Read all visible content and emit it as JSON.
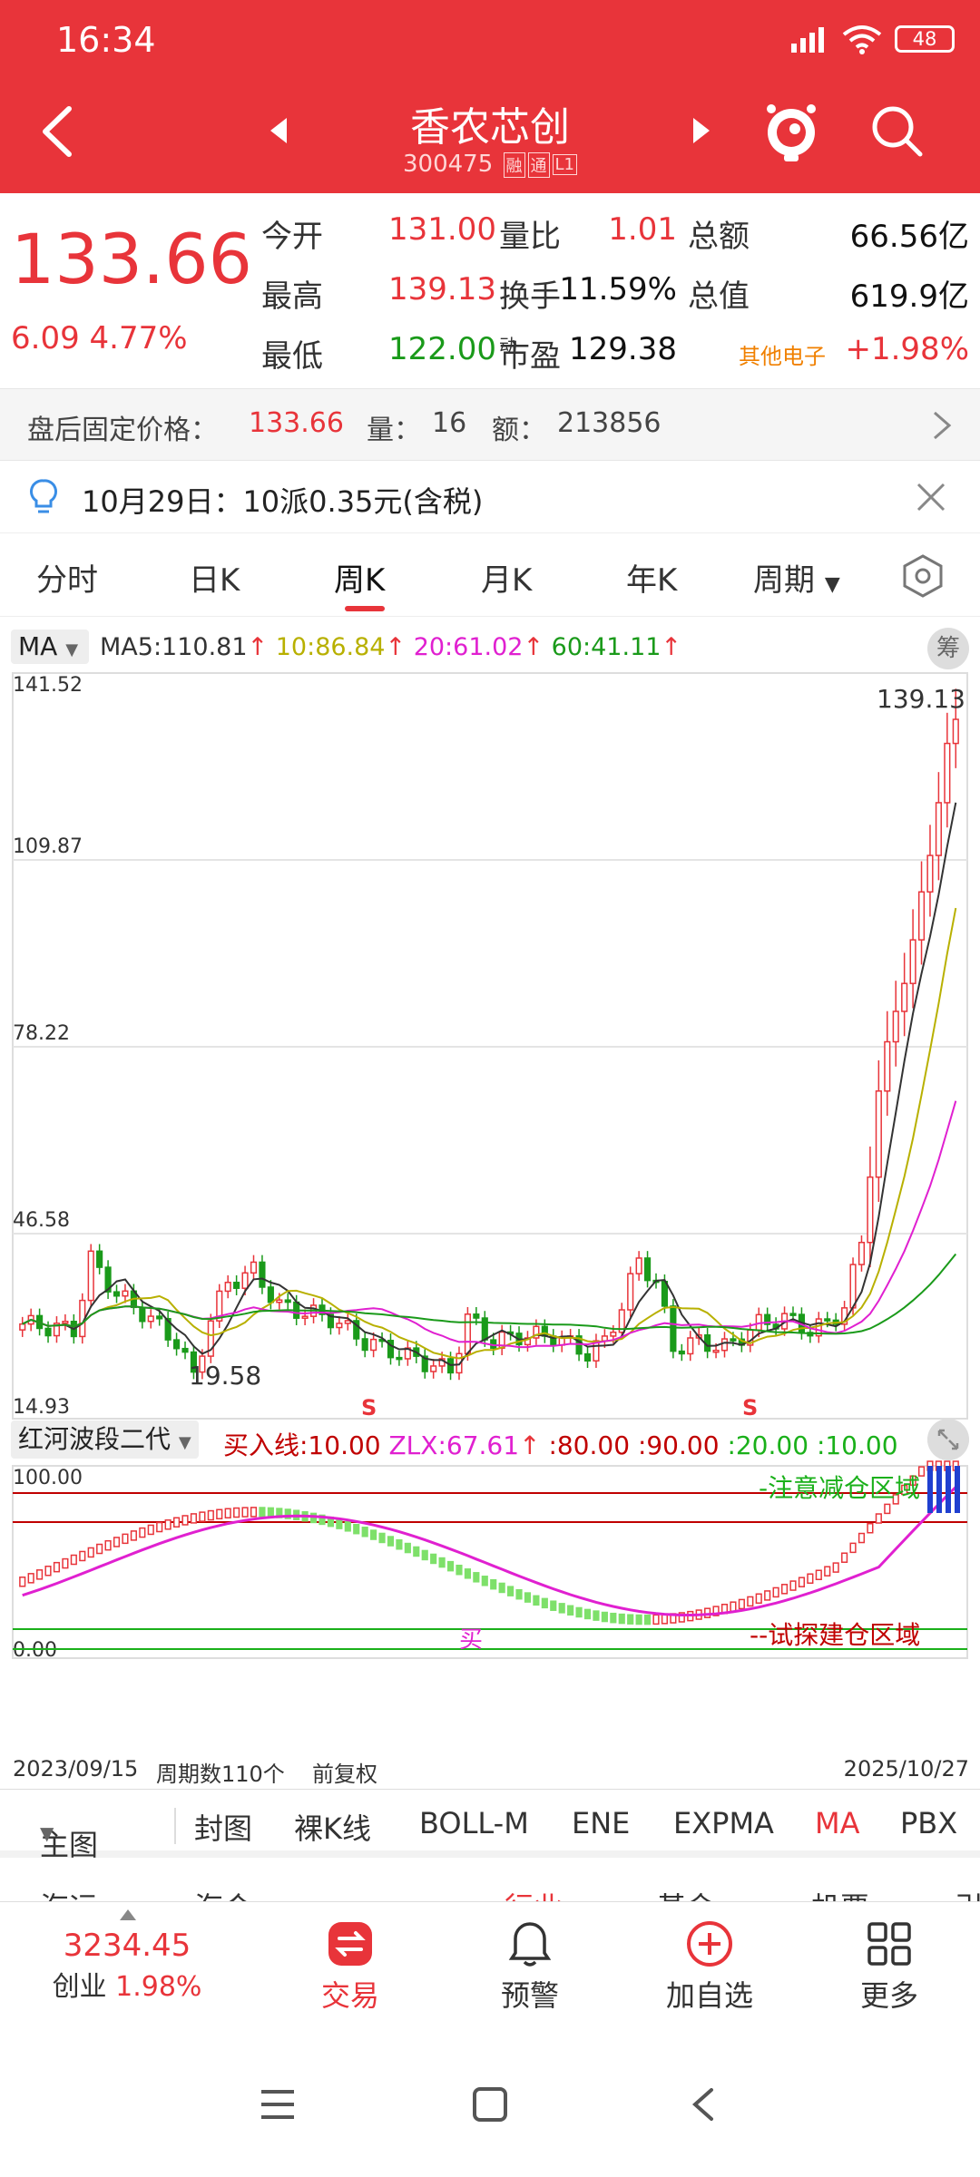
{
  "status": {
    "time": "16:34",
    "battery": "48"
  },
  "nav": {
    "title": "香农芯创",
    "code": "300475",
    "tags": [
      "融",
      "通",
      "L1"
    ]
  },
  "quote": {
    "price": "133.66",
    "change": "6.09",
    "change_pct": "4.77%",
    "rows": [
      {
        "l1": "今开",
        "v1": "131.00",
        "l2": "量比",
        "v2": "1.01",
        "l3": "总额",
        "v3": "66.56亿"
      },
      {
        "l1": "最高",
        "v1": "139.13",
        "l2": "换手",
        "v2": "11.59%",
        "l3": "总值",
        "v3": "619.9亿"
      },
      {
        "l1": "最低",
        "v1": "122.00",
        "l2": "市盈",
        "l2_sup": "动",
        "v2": "129.38",
        "l3": "其他电子",
        "v3": "+1.98%"
      }
    ]
  },
  "after_hours": {
    "label": "盘后固定价格：",
    "price": "133.66",
    "vol_label": "量：",
    "vol": "16",
    "amt_label": "额：",
    "amt": "213856"
  },
  "notice": {
    "text": "10月29日：10派0.35元(含税)"
  },
  "tabs": {
    "items": [
      "分时",
      "日K",
      "周K",
      "月K",
      "年K",
      "周期"
    ],
    "active": "周K"
  },
  "ma": {
    "selector": "MA",
    "ma5": "MA5:110.81",
    "ma10": "10:86.84",
    "ma20": "20:61.02",
    "ma60": "60:41.11",
    "chou": "筹"
  },
  "chart_data": [
    {
      "type": "candlestick",
      "title": "",
      "y_ticks": [
        "141.52",
        "109.87",
        "78.22",
        "46.58",
        "14.93"
      ],
      "ylim": [
        14.93,
        141.52
      ],
      "annotations": {
        "high": "139.13",
        "low": "19.58",
        "sell_marks": [
          "S",
          "S"
        ]
      },
      "series": [
        {
          "name": "MA5",
          "color": "#333333"
        },
        {
          "name": "MA10",
          "color": "#b8b000"
        },
        {
          "name": "MA20",
          "color": "#e020d0"
        },
        {
          "name": "MA60",
          "color": "#1a9a1a"
        }
      ],
      "x_start": "2023/09/15",
      "x_end": "2025/10/27",
      "periods": "周期数110个",
      "adjust": "前复权"
    },
    {
      "type": "line",
      "title": "红河波段二代",
      "y_ticks": [
        "100.00",
        "0.00"
      ],
      "ylim": [
        0,
        100
      ],
      "params": {
        "buy": "买入线:10.00",
        "zlx": "ZLX:67.61",
        "l80": ":80.00",
        "l90": ":90.00",
        "l20": ":20.00",
        "l10": ":10.00"
      },
      "labels": {
        "top": "-注意减仓区域",
        "bottom": "--试探建仓区域",
        "buy_mark": "买"
      }
    }
  ],
  "overlays": {
    "main": "主图",
    "items": [
      "封图",
      "裸K线",
      "BOLL-M",
      "ENE",
      "EXPMA",
      "MA",
      "PBX"
    ],
    "active": "MA"
  },
  "cutoff_row": [
    "海运",
    "海合",
    "行业",
    "基金",
    "机票",
    "引"
  ],
  "bottom_nav": {
    "index_value": "3234.45",
    "index_name": "创业",
    "index_pct": "1.98%",
    "items": [
      "交易",
      "预警",
      "加自选",
      "更多"
    ]
  },
  "colors": {
    "brand": "#e8343a",
    "up": "#e8343a",
    "down": "#1a9a1a"
  }
}
